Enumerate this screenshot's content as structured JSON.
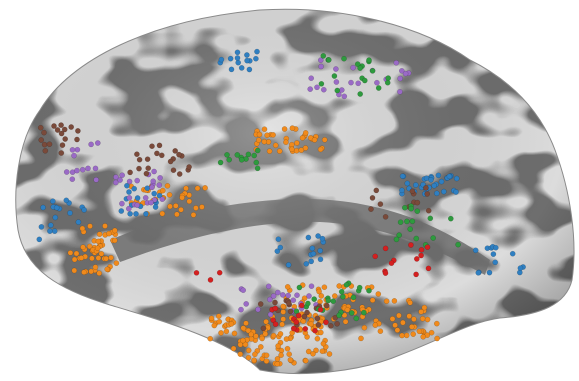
{
  "figure": {
    "kind": "inflated cortical surface with electrode markers",
    "background_color": "#ffffff",
    "surface_colors": {
      "gyri": "#dcdcdc",
      "sulci": "#6e6e6e"
    }
  },
  "marker_groups": [
    {
      "name": "orange",
      "color": "#f08a1c",
      "count_estimate": 330
    },
    {
      "name": "blue",
      "color": "#2f7fc1",
      "count_estimate": 110
    },
    {
      "name": "purple",
      "color": "#9a6ac6",
      "count_estimate": 80
    },
    {
      "name": "brown",
      "color": "#7a4a3a",
      "count_estimate": 70
    },
    {
      "name": "green",
      "color": "#2e9a3e",
      "count_estimate": 70
    },
    {
      "name": "red",
      "color": "#d42020",
      "count_estimate": 30
    }
  ]
}
